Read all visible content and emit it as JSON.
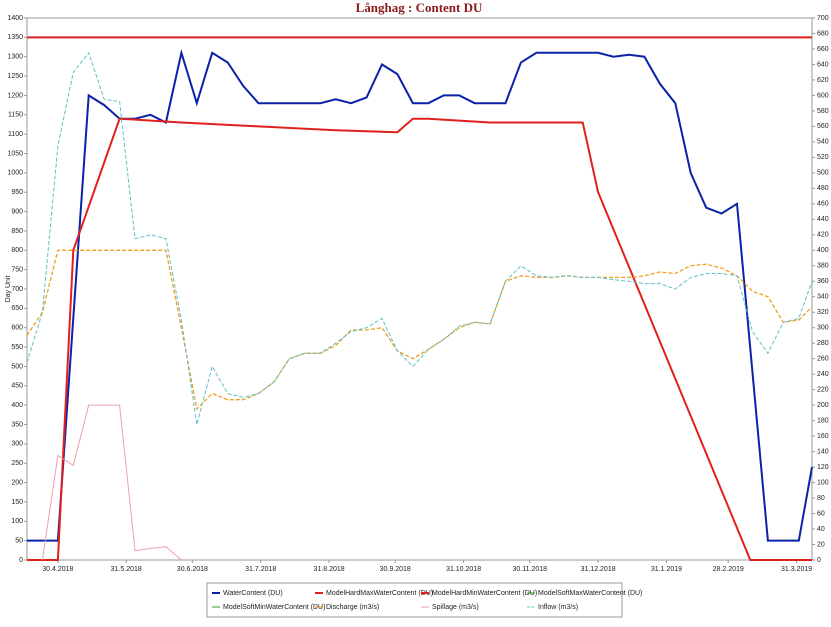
{
  "chart_data": {
    "type": "line",
    "title": "Långhag : Content DU",
    "ylabel": "Day Unit",
    "xlim": [
      0,
      356
    ],
    "xticks": [
      {
        "value": 14,
        "label": "30.4.2018"
      },
      {
        "value": 45,
        "label": "31.5.2018"
      },
      {
        "value": 75,
        "label": "30.6.2018"
      },
      {
        "value": 106,
        "label": "31.7.2018"
      },
      {
        "value": 137,
        "label": "31.8.2018"
      },
      {
        "value": 167,
        "label": "30.9.2018"
      },
      {
        "value": 198,
        "label": "31.10.2018"
      },
      {
        "value": 228,
        "label": "30.11.2018"
      },
      {
        "value": 259,
        "label": "31.12.2018"
      },
      {
        "value": 290,
        "label": "31.1.2019"
      },
      {
        "value": 318,
        "label": "28.2.2019"
      },
      {
        "value": 349,
        "label": "31.3.2019"
      }
    ],
    "ylim": [
      0,
      1400
    ],
    "yticks": [
      0,
      50,
      100,
      150,
      200,
      250,
      300,
      350,
      400,
      450,
      500,
      550,
      600,
      650,
      700,
      750,
      800,
      850,
      900,
      950,
      1000,
      1050,
      1100,
      1150,
      1200,
      1250,
      1300,
      1350,
      1400
    ],
    "y2lim": [
      0,
      700
    ],
    "y2ticks": [
      0,
      20,
      40,
      60,
      80,
      100,
      120,
      140,
      160,
      180,
      200,
      220,
      240,
      260,
      280,
      300,
      320,
      340,
      360,
      380,
      400,
      420,
      440,
      460,
      480,
      500,
      520,
      540,
      560,
      580,
      600,
      620,
      640,
      660,
      680,
      700
    ],
    "series": [
      {
        "name": "WaterContent (DU)",
        "color": "#0a22a8",
        "width": 2,
        "x": [
          0,
          14,
          28,
          35,
          42,
          49,
          56,
          63,
          70,
          77,
          84,
          91,
          98,
          105,
          133,
          140,
          147,
          154,
          161,
          168,
          175,
          182,
          189,
          196,
          203,
          217,
          224,
          231,
          259,
          266,
          273,
          280,
          287,
          294,
          301,
          308,
          315,
          322,
          336,
          350,
          356
        ],
        "values": [
          50,
          50,
          1200,
          1175,
          1140,
          1140,
          1150,
          1130,
          1310,
          1180,
          1310,
          1285,
          1225,
          1180,
          1180,
          1190,
          1180,
          1195,
          1280,
          1255,
          1180,
          1180,
          1200,
          1200,
          1180,
          1180,
          1285,
          1310,
          1310,
          1300,
          1305,
          1300,
          1230,
          1180,
          1000,
          910,
          895,
          920,
          50,
          50,
          240
        ]
      },
      {
        "name": "ModelHardMaxWaterContent (DU)",
        "color": "#e0201c",
        "width": 2,
        "x": [
          0,
          356
        ],
        "values": [
          1350,
          1350
        ]
      },
      {
        "name": "ModelHardMinWaterContent (DU)",
        "color": "#e0201c",
        "width": 2,
        "x": [
          0,
          14,
          21,
          42,
          70,
          105,
          140,
          168,
          175,
          182,
          210,
          252,
          259,
          328,
          356
        ],
        "values": [
          0,
          0,
          800,
          1140,
          1130,
          1120,
          1110,
          1105,
          1140,
          1140,
          1130,
          1130,
          950,
          0,
          0
        ]
      },
      {
        "name": "ModelSoftMaxWaterContent (DU)",
        "color": "#2ca02c",
        "width": 1,
        "x": [],
        "values": []
      },
      {
        "name": "ModelSoftMinWaterContent (DU)",
        "color": "#2ca02c",
        "width": 1,
        "x": [],
        "values": []
      },
      {
        "name": "Discharge (m3/s)",
        "color": "#f0a020",
        "width": 1.3,
        "dash": true,
        "axis": "y2",
        "x": [
          0,
          7,
          14,
          21,
          28,
          35,
          42,
          49,
          56,
          63,
          70,
          77,
          84,
          91,
          98,
          105,
          112,
          119,
          126,
          133,
          140,
          147,
          154,
          161,
          168,
          175,
          182,
          189,
          196,
          203,
          210,
          217,
          224,
          231,
          238,
          245,
          252,
          259,
          266,
          273,
          280,
          287,
          294,
          301,
          308,
          315,
          322,
          329,
          336,
          343,
          350,
          356
        ],
        "values": [
          290,
          320,
          400,
          400,
          400,
          400,
          400,
          400,
          400,
          400,
          300,
          195,
          215,
          207,
          207,
          215,
          230,
          260,
          267,
          267,
          277,
          297,
          297,
          300,
          270,
          260,
          272,
          285,
          300,
          307,
          305,
          360,
          367,
          365,
          365,
          367,
          365,
          365,
          365,
          365,
          367,
          372,
          370,
          380,
          382,
          377,
          367,
          347,
          340,
          307,
          310,
          327
        ]
      },
      {
        "name": "Spillage (m3/s)",
        "color": "#e8a0b0",
        "width": 1,
        "axis": "y2",
        "x": [
          7,
          14,
          21,
          28,
          42,
          49,
          56,
          63,
          70
        ],
        "values": [
          0,
          135,
          122,
          200,
          200,
          12,
          15,
          17,
          0
        ]
      },
      {
        "name": "Inflow (m3/s)",
        "color": "#5fc0c8",
        "width": 1,
        "dash": true,
        "axis": "y2",
        "x": [
          0,
          7,
          14,
          21,
          28,
          35,
          42,
          49,
          56,
          63,
          70,
          77,
          84,
          91,
          98,
          105,
          112,
          119,
          126,
          133,
          140,
          147,
          154,
          161,
          168,
          175,
          182,
          189,
          196,
          203,
          210,
          217,
          224,
          231,
          238,
          245,
          252,
          259,
          266,
          273,
          280,
          287,
          294,
          301,
          308,
          315,
          322,
          329,
          336,
          343,
          350,
          356
        ],
        "values": [
          255,
          320,
          535,
          630,
          655,
          595,
          592,
          415,
          420,
          415,
          310,
          175,
          250,
          215,
          210,
          215,
          230,
          260,
          267,
          267,
          280,
          295,
          300,
          312,
          270,
          250,
          272,
          285,
          302,
          307,
          305,
          360,
          380,
          367,
          365,
          367,
          365,
          365,
          362,
          360,
          357,
          357,
          350,
          365,
          370,
          370,
          367,
          295,
          267,
          307,
          312,
          360
        ]
      }
    ]
  }
}
